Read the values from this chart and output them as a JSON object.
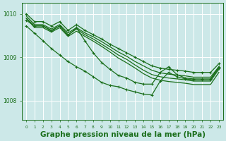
{
  "background_color": "#cce8e8",
  "grid_color": "#ffffff",
  "line_color": "#1a6e1a",
  "marker_color": "#1a6e1a",
  "title": "Graphe pression niveau de la mer (hPa)",
  "title_fontsize": 7.5,
  "title_fontweight": "bold",
  "xlabel_color": "#1a6e1a",
  "ylim": [
    1007.55,
    1010.25
  ],
  "xlim": [
    -0.5,
    23.5
  ],
  "yticks": [
    1008,
    1009,
    1010
  ],
  "xticks": [
    0,
    1,
    2,
    3,
    4,
    5,
    6,
    7,
    8,
    9,
    10,
    11,
    12,
    13,
    14,
    15,
    16,
    17,
    18,
    19,
    20,
    21,
    22,
    23
  ],
  "series": [
    {
      "y": [
        1010.0,
        1009.82,
        1009.82,
        1009.72,
        1009.82,
        1009.62,
        1009.75,
        1009.62,
        1009.52,
        1009.42,
        1009.3,
        1009.2,
        1009.1,
        1009.0,
        1008.9,
        1008.8,
        1008.75,
        1008.72,
        1008.7,
        1008.68,
        1008.65,
        1008.65,
        1008.65,
        1008.85
      ],
      "marker": true,
      "straight": false
    },
    {
      "y": [
        1009.9,
        1009.72,
        1009.72,
        1009.62,
        1009.72,
        1009.52,
        1009.65,
        1009.52,
        1009.42,
        1009.3,
        1009.18,
        1009.05,
        1008.95,
        1008.82,
        1008.7,
        1008.6,
        1008.55,
        1008.52,
        1008.5,
        1008.48,
        1008.45,
        1008.45,
        1008.45,
        1008.72
      ],
      "marker": false,
      "straight": true
    },
    {
      "y": [
        1009.9,
        1009.68,
        1009.68,
        1009.58,
        1009.68,
        1009.48,
        1009.6,
        1009.48,
        1009.37,
        1009.25,
        1009.12,
        1008.98,
        1008.87,
        1008.75,
        1008.62,
        1008.52,
        1008.47,
        1008.44,
        1008.42,
        1008.4,
        1008.37,
        1008.37,
        1008.37,
        1008.65
      ],
      "marker": false,
      "straight": true
    },
    {
      "y": [
        1009.95,
        1009.75,
        1009.75,
        1009.65,
        1009.75,
        1009.56,
        1009.68,
        1009.56,
        1009.47,
        1009.36,
        1009.24,
        1009.12,
        1009.02,
        1008.9,
        1008.8,
        1008.7,
        1008.64,
        1008.61,
        1008.59,
        1008.57,
        1008.54,
        1008.54,
        1008.54,
        1008.78
      ],
      "marker": false,
      "straight": true
    },
    {
      "y": [
        1009.85,
        1009.72,
        1009.72,
        1009.6,
        1009.72,
        1009.5,
        1009.68,
        1009.38,
        1009.1,
        1008.88,
        1008.72,
        1008.58,
        1008.52,
        1008.42,
        1008.38,
        1008.38,
        1008.65,
        1008.78,
        1008.6,
        1008.52,
        1008.5,
        1008.5,
        1008.5,
        1008.78
      ],
      "marker": true,
      "straight": false
    },
    {
      "y": [
        1009.72,
        1009.55,
        1009.38,
        1009.2,
        1009.05,
        1008.9,
        1008.78,
        1008.68,
        1008.55,
        1008.42,
        1008.35,
        1008.32,
        1008.25,
        1008.2,
        1008.15,
        1008.13,
        1008.45,
        1008.65,
        1008.55,
        1008.5,
        1008.48,
        1008.48,
        1008.48,
        1008.75
      ],
      "marker": true,
      "straight": false
    }
  ],
  "marker_size": 2.8,
  "linewidth": 0.9
}
